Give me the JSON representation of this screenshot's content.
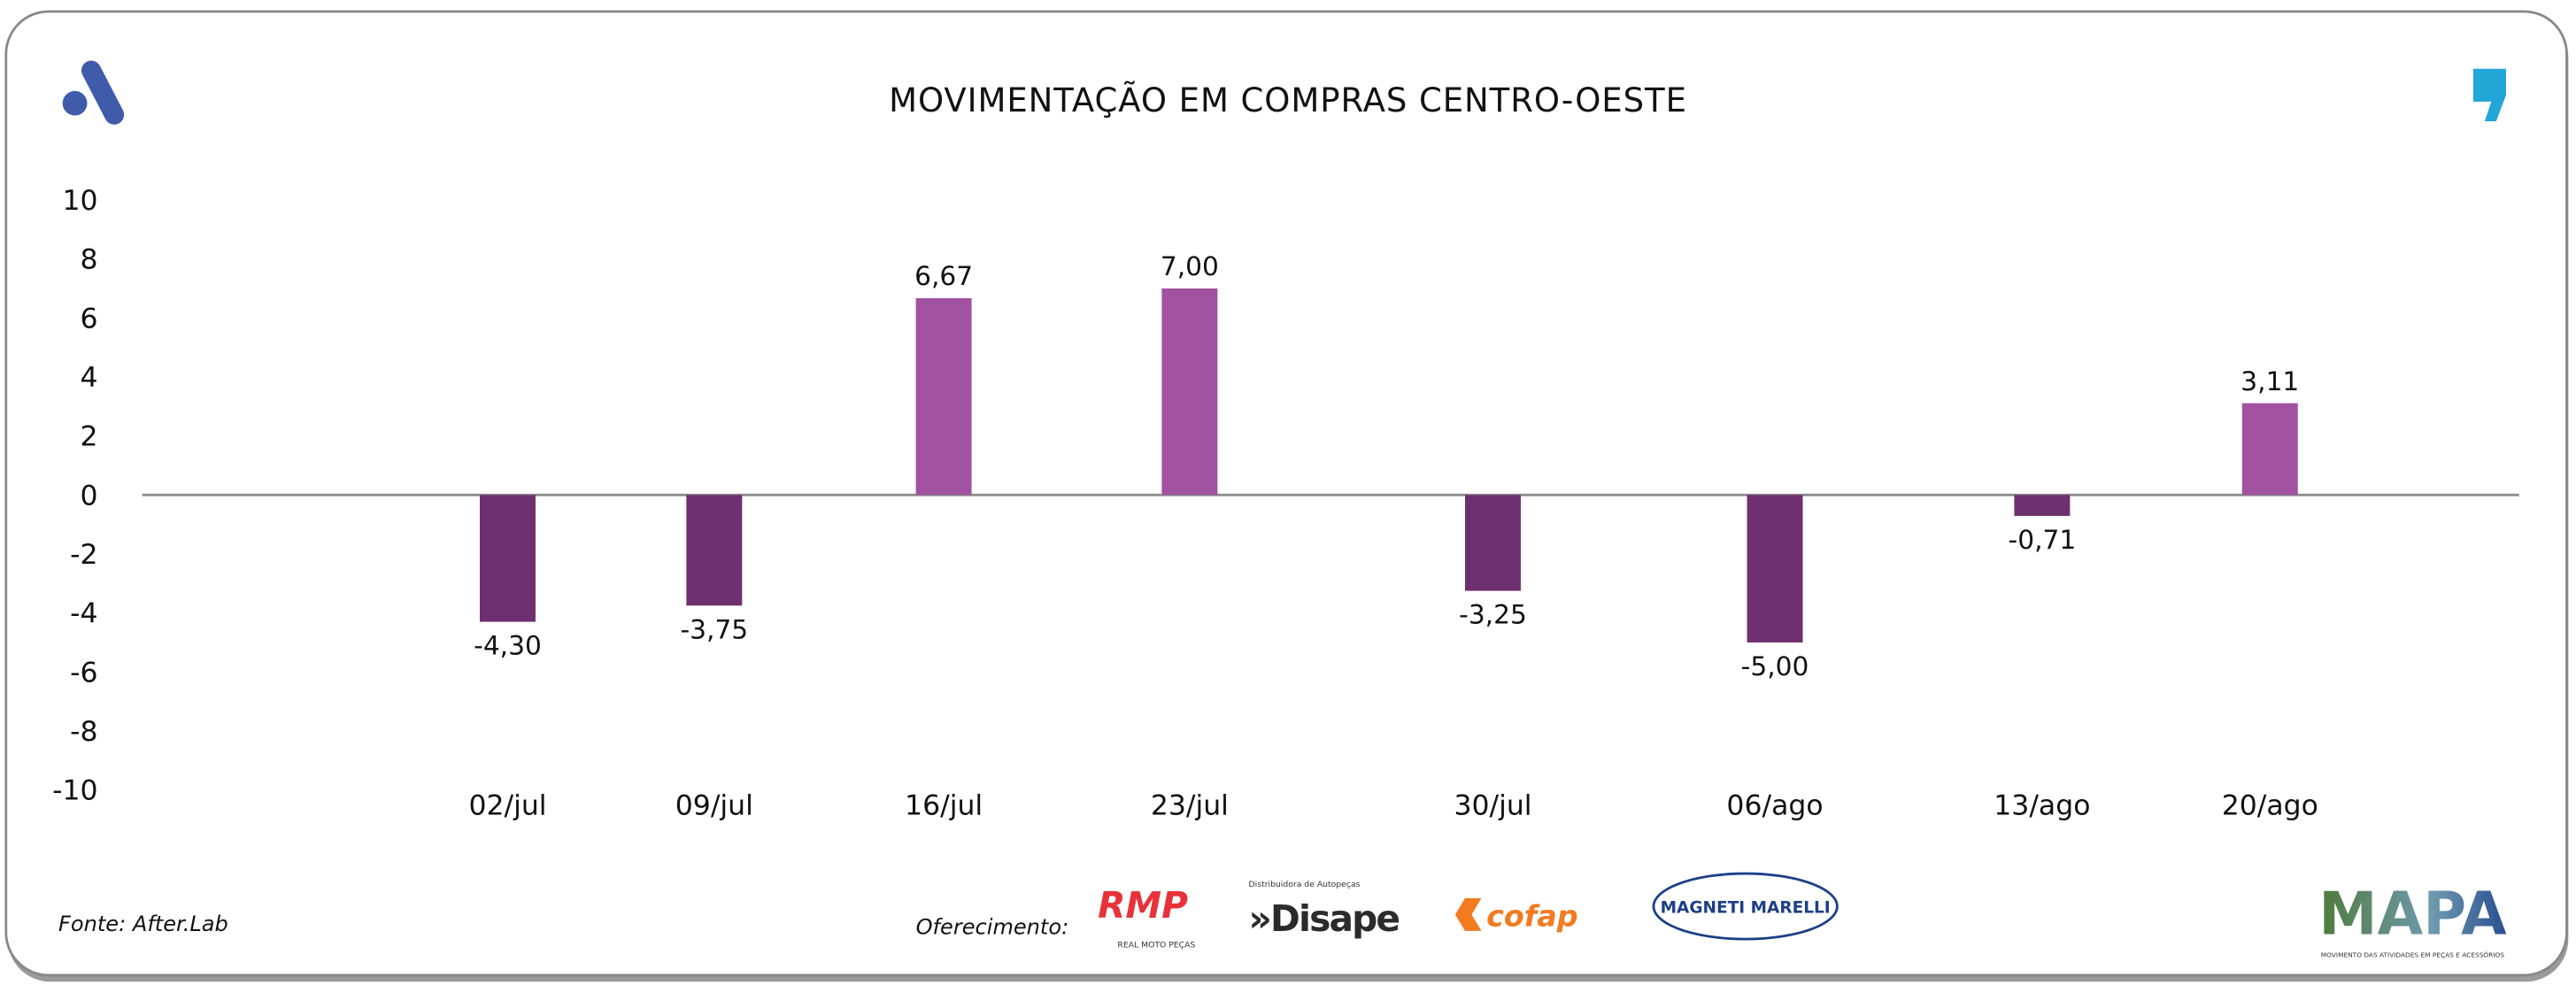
{
  "chart_data": {
    "type": "bar",
    "title": "MOVIMENTAÇÃO EM COMPRAS CENTRO-OESTE",
    "categories": [
      "02/jul",
      "09/jul",
      "16/jul",
      "23/jul",
      "30/jul",
      "06/ago",
      "13/ago",
      "20/ago"
    ],
    "values": [
      -4.3,
      -3.75,
      6.67,
      7.0,
      -3.25,
      -5.0,
      -0.71,
      3.11
    ],
    "data_labels": [
      "-4,30",
      "-3,75",
      "6,67",
      "7,00",
      "-3,25",
      "-5,00",
      "-0,71",
      "3,11"
    ],
    "ylim": [
      -10,
      10
    ],
    "yticks": [
      "10",
      "8",
      "6",
      "4",
      "2",
      "0",
      "-2",
      "-4",
      "-6",
      "-8",
      "-10"
    ],
    "xlabel": "",
    "ylabel": "",
    "grid": false,
    "colors": {
      "positive": "#a052a0",
      "negative": "#6e3070",
      "axis": "#8a8a8a"
    }
  },
  "footer": {
    "source": "Fonte: After.Lab",
    "sponsor_label": "Oferecimento:",
    "sponsors": [
      "RMP",
      "REAL MOTO PEÇAS",
      "Disape",
      "Distribuidora de Autopeças",
      "cofap",
      "MAGNETI MARELLI"
    ],
    "brand": "MAPA",
    "brand_tagline": "MOVIMENTO DAS ATIVIDADES EM PEÇAS E ACESSÓRIOS"
  },
  "colors": {
    "logo_left": "#3f5baa",
    "logo_right": "#22a6d8",
    "border": "#888888"
  }
}
